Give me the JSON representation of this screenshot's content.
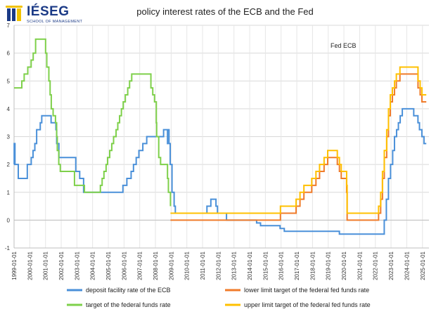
{
  "brand": {
    "name": "IÉSEG",
    "tagline": "SCHOOL OF MANAGEMENT",
    "color": "#1b3a86",
    "accent": "#f2c200"
  },
  "chart_data": {
    "type": "line",
    "title": "policy interest rates of the ECB and the Fed",
    "annotation": "Fed ECB",
    "xlabel": "",
    "ylabel": "",
    "ylim": [
      -1,
      7
    ],
    "yticks": [
      -1,
      0,
      1,
      2,
      3,
      4,
      5,
      6,
      7
    ],
    "xlim": [
      "1999-01-01",
      "2025-06-01"
    ],
    "xticks": [
      "1999-01-01",
      "2000-01-01",
      "2001-01-01",
      "2002-01-01",
      "2003-01-01",
      "2004-01-01",
      "2005-01-01",
      "2006-01-01",
      "2007-01-01",
      "2008-01-01",
      "2009-01-01",
      "2010-01-01",
      "2011-01-01",
      "2012-01-01",
      "2013-01-01",
      "2014-01-01",
      "2015-01-01",
      "2016-01-01",
      "2017-01-01",
      "2018-01-01",
      "2019-01-01",
      "2020-01-01",
      "2021-01-01",
      "2022-01-01",
      "2023-01-01",
      "2024-01-01",
      "2025-01-01"
    ],
    "grid": true,
    "legend_position": "bottom",
    "step": true,
    "series": [
      {
        "name": "deposit facility rate of the ECB",
        "color": "#4a90d9",
        "points": [
          [
            "1999-01-01",
            2.0
          ],
          [
            "1999-01-04",
            2.75
          ],
          [
            "1999-01-22",
            2.0
          ],
          [
            "1999-04-09",
            1.5
          ],
          [
            "1999-11-05",
            2.0
          ],
          [
            "2000-02-04",
            2.25
          ],
          [
            "2000-03-17",
            2.5
          ],
          [
            "2000-04-28",
            2.75
          ],
          [
            "2000-06-09",
            3.25
          ],
          [
            "2000-09-01",
            3.5
          ],
          [
            "2000-10-06",
            3.75
          ],
          [
            "2001-05-11",
            3.5
          ],
          [
            "2001-08-31",
            3.25
          ],
          [
            "2001-09-18",
            2.75
          ],
          [
            "2001-11-09",
            2.25
          ],
          [
            "2002-12-06",
            1.75
          ],
          [
            "2003-03-07",
            1.5
          ],
          [
            "2003-06-06",
            1.0
          ],
          [
            "2005-12-06",
            1.25
          ],
          [
            "2006-03-08",
            1.5
          ],
          [
            "2006-06-15",
            1.75
          ],
          [
            "2006-08-09",
            2.0
          ],
          [
            "2006-10-11",
            2.25
          ],
          [
            "2006-12-13",
            2.5
          ],
          [
            "2007-03-14",
            2.75
          ],
          [
            "2007-06-13",
            3.0
          ],
          [
            "2008-07-09",
            3.25
          ],
          [
            "2008-10-08",
            2.75
          ],
          [
            "2008-10-09",
            3.25
          ],
          [
            "2008-11-12",
            2.75
          ],
          [
            "2008-12-10",
            2.0
          ],
          [
            "2009-01-21",
            1.0
          ],
          [
            "2009-03-11",
            0.5
          ],
          [
            "2009-04-08",
            0.25
          ],
          [
            "2011-04-13",
            0.5
          ],
          [
            "2011-07-13",
            0.75
          ],
          [
            "2011-11-09",
            0.5
          ],
          [
            "2011-12-14",
            0.25
          ],
          [
            "2012-07-11",
            0.0
          ],
          [
            "2014-06-11",
            -0.1
          ],
          [
            "2014-09-10",
            -0.2
          ],
          [
            "2015-12-09",
            -0.3
          ],
          [
            "2016-03-16",
            -0.4
          ],
          [
            "2019-09-18",
            -0.5
          ],
          [
            "2022-07-27",
            0.0
          ],
          [
            "2022-09-14",
            0.75
          ],
          [
            "2022-11-02",
            1.5
          ],
          [
            "2022-12-21",
            2.0
          ],
          [
            "2023-02-08",
            2.5
          ],
          [
            "2023-03-22",
            3.0
          ],
          [
            "2023-05-10",
            3.25
          ],
          [
            "2023-06-21",
            3.5
          ],
          [
            "2023-08-02",
            3.75
          ],
          [
            "2023-09-20",
            4.0
          ],
          [
            "2024-06-12",
            3.75
          ],
          [
            "2024-09-18",
            3.5
          ],
          [
            "2024-10-23",
            3.25
          ],
          [
            "2024-12-18",
            3.0
          ],
          [
            "2025-02-05",
            2.75
          ],
          [
            "2025-03-31",
            2.75
          ]
        ]
      },
      {
        "name": "target of the federal funds rate",
        "color": "#7ed04a",
        "points": [
          [
            "1999-01-01",
            4.75
          ],
          [
            "1999-06-30",
            5.0
          ],
          [
            "1999-08-24",
            5.25
          ],
          [
            "1999-11-16",
            5.5
          ],
          [
            "2000-02-02",
            5.75
          ],
          [
            "2000-03-21",
            6.0
          ],
          [
            "2000-05-16",
            6.5
          ],
          [
            "2001-01-03",
            6.0
          ],
          [
            "2001-01-31",
            5.5
          ],
          [
            "2001-03-20",
            5.0
          ],
          [
            "2001-04-18",
            4.5
          ],
          [
            "2001-05-15",
            4.0
          ],
          [
            "2001-06-27",
            3.75
          ],
          [
            "2001-08-21",
            3.5
          ],
          [
            "2001-09-17",
            3.0
          ],
          [
            "2001-10-02",
            2.5
          ],
          [
            "2001-11-06",
            2.0
          ],
          [
            "2001-12-11",
            1.75
          ],
          [
            "2002-11-06",
            1.25
          ],
          [
            "2003-06-25",
            1.0
          ],
          [
            "2004-06-30",
            1.25
          ],
          [
            "2004-08-10",
            1.5
          ],
          [
            "2004-09-21",
            1.75
          ],
          [
            "2004-11-10",
            2.0
          ],
          [
            "2004-12-14",
            2.25
          ],
          [
            "2005-02-02",
            2.5
          ],
          [
            "2005-03-22",
            2.75
          ],
          [
            "2005-05-03",
            3.0
          ],
          [
            "2005-06-30",
            3.25
          ],
          [
            "2005-08-09",
            3.5
          ],
          [
            "2005-09-20",
            3.75
          ],
          [
            "2005-11-01",
            4.0
          ],
          [
            "2005-12-13",
            4.25
          ],
          [
            "2006-01-31",
            4.5
          ],
          [
            "2006-03-28",
            4.75
          ],
          [
            "2006-05-10",
            5.0
          ],
          [
            "2006-06-29",
            5.25
          ],
          [
            "2007-09-18",
            4.75
          ],
          [
            "2007-10-31",
            4.5
          ],
          [
            "2007-12-11",
            4.25
          ],
          [
            "2008-01-22",
            3.5
          ],
          [
            "2008-01-30",
            3.0
          ],
          [
            "2008-03-18",
            2.25
          ],
          [
            "2008-04-30",
            2.0
          ],
          [
            "2008-10-08",
            1.5
          ],
          [
            "2008-10-29",
            1.0
          ],
          [
            "2008-12-16",
            0.5
          ]
        ]
      },
      {
        "name": "lower limit target of the federal fed funds rate",
        "color": "#f07b2a",
        "points": [
          [
            "2008-12-16",
            0.0
          ],
          [
            "2015-12-17",
            0.25
          ],
          [
            "2016-12-15",
            0.5
          ],
          [
            "2017-03-16",
            0.75
          ],
          [
            "2017-06-15",
            1.0
          ],
          [
            "2017-12-14",
            1.25
          ],
          [
            "2018-03-22",
            1.5
          ],
          [
            "2018-06-14",
            1.75
          ],
          [
            "2018-09-27",
            2.0
          ],
          [
            "2018-12-20",
            2.25
          ],
          [
            "2019-08-01",
            2.0
          ],
          [
            "2019-09-19",
            1.75
          ],
          [
            "2019-10-31",
            1.5
          ],
          [
            "2020-03-04",
            1.0
          ],
          [
            "2020-03-16",
            0.0
          ],
          [
            "2022-03-17",
            0.25
          ],
          [
            "2022-05-05",
            0.75
          ],
          [
            "2022-06-16",
            1.5
          ],
          [
            "2022-07-28",
            2.25
          ],
          [
            "2022-09-22",
            3.0
          ],
          [
            "2022-11-03",
            3.75
          ],
          [
            "2022-12-15",
            4.25
          ],
          [
            "2023-02-02",
            4.5
          ],
          [
            "2023-03-23",
            4.75
          ],
          [
            "2023-05-04",
            5.0
          ],
          [
            "2023-07-27",
            5.25
          ],
          [
            "2024-09-19",
            4.75
          ],
          [
            "2024-11-08",
            4.5
          ],
          [
            "2024-12-19",
            4.25
          ],
          [
            "2025-03-31",
            4.25
          ]
        ]
      },
      {
        "name": "upper limit target of the federal fed funds rate",
        "color": "#ffc000",
        "points": [
          [
            "2008-12-16",
            0.25
          ],
          [
            "2015-12-17",
            0.5
          ],
          [
            "2016-12-15",
            0.75
          ],
          [
            "2017-03-16",
            1.0
          ],
          [
            "2017-06-15",
            1.25
          ],
          [
            "2017-12-14",
            1.5
          ],
          [
            "2018-03-22",
            1.75
          ],
          [
            "2018-06-14",
            2.0
          ],
          [
            "2018-09-27",
            2.25
          ],
          [
            "2018-12-20",
            2.5
          ],
          [
            "2019-08-01",
            2.25
          ],
          [
            "2019-09-19",
            2.0
          ],
          [
            "2019-10-31",
            1.75
          ],
          [
            "2020-03-04",
            1.25
          ],
          [
            "2020-03-16",
            0.25
          ],
          [
            "2022-03-17",
            0.5
          ],
          [
            "2022-05-05",
            1.0
          ],
          [
            "2022-06-16",
            1.75
          ],
          [
            "2022-07-28",
            2.5
          ],
          [
            "2022-09-22",
            3.25
          ],
          [
            "2022-11-03",
            4.0
          ],
          [
            "2022-12-15",
            4.5
          ],
          [
            "2023-02-02",
            4.75
          ],
          [
            "2023-03-23",
            5.0
          ],
          [
            "2023-05-04",
            5.25
          ],
          [
            "2023-07-27",
            5.5
          ],
          [
            "2024-09-19",
            5.0
          ],
          [
            "2024-11-08",
            4.75
          ],
          [
            "2024-12-19",
            4.5
          ],
          [
            "2025-03-31",
            4.5
          ]
        ]
      }
    ]
  }
}
